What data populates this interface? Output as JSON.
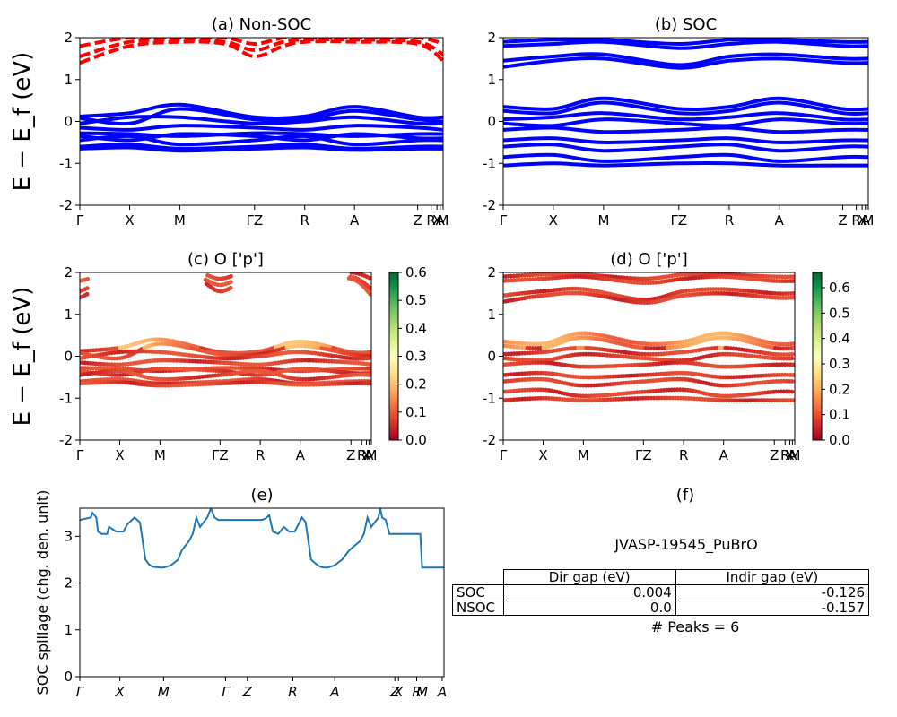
{
  "chart_data": [
    {
      "id": "a",
      "type": "line",
      "title": "(a) Non-SOC",
      "ylabel": "E − E_f (eV)",
      "ylim": [
        -2,
        2
      ],
      "yticks": [
        -2,
        -1,
        0,
        1,
        2
      ],
      "kpath_labels": [
        "Γ",
        "X",
        "M",
        "ΓZ",
        "R",
        "A",
        "Z",
        "R",
        "X",
        "A",
        "M"
      ],
      "kpath_pos": [
        0,
        0.137,
        0.275,
        0.481,
        0.619,
        0.756,
        0.93,
        0.967,
        0.983,
        0.992,
        1.0
      ],
      "grid": false,
      "series": [
        {
          "color": "#0000ff",
          "style": "solid",
          "bands": [
            {
              "x": [
                0,
                0.137,
                0.275,
                0.481,
                0.619,
                0.756,
                0.93,
                1.0
              ],
              "y": [
                0.12,
                0.2,
                0.4,
                0.1,
                0.12,
                0.35,
                0.1,
                0.1
              ]
            },
            {
              "x": [
                0,
                0.137,
                0.275,
                0.481,
                0.619,
                0.756,
                0.93,
                1.0
              ],
              "y": [
                0.08,
                -0.05,
                0.3,
                0.05,
                0.05,
                0.25,
                0.05,
                0.0
              ]
            },
            {
              "x": [
                0,
                0.137,
                0.275,
                0.481,
                0.619,
                0.756,
                0.93,
                1.0
              ],
              "y": [
                -0.05,
                0.1,
                0.1,
                -0.05,
                0.0,
                0.1,
                -0.05,
                -0.05
              ]
            },
            {
              "x": [
                0,
                0.137,
                0.275,
                0.481,
                0.619,
                0.756,
                0.93,
                1.0
              ],
              "y": [
                -0.15,
                -0.2,
                -0.1,
                -0.15,
                -0.2,
                -0.1,
                -0.15,
                -0.2
              ]
            },
            {
              "x": [
                0,
                0.137,
                0.275,
                0.481,
                0.619,
                0.756,
                0.93,
                1.0
              ],
              "y": [
                -0.28,
                -0.3,
                -0.35,
                -0.28,
                -0.3,
                -0.35,
                -0.3,
                -0.3
              ]
            },
            {
              "x": [
                0,
                0.137,
                0.275,
                0.481,
                0.619,
                0.756,
                0.93,
                1.0
              ],
              "y": [
                -0.35,
                -0.45,
                -0.3,
                -0.35,
                -0.45,
                -0.3,
                -0.4,
                -0.4
              ]
            },
            {
              "x": [
                0,
                0.137,
                0.275,
                0.481,
                0.619,
                0.756,
                0.93,
                1.0
              ],
              "y": [
                -0.45,
                -0.35,
                -0.55,
                -0.45,
                -0.35,
                -0.55,
                -0.45,
                -0.45
              ]
            },
            {
              "x": [
                0,
                0.137,
                0.275,
                0.481,
                0.619,
                0.756,
                0.93,
                1.0
              ],
              "y": [
                -0.6,
                -0.55,
                -0.65,
                -0.6,
                -0.55,
                -0.65,
                -0.6,
                -0.6
              ]
            },
            {
              "x": [
                0,
                0.137,
                0.275,
                0.481,
                0.619,
                0.756,
                0.93,
                1.0
              ],
              "y": [
                -0.65,
                -0.62,
                -0.7,
                -0.65,
                -0.62,
                -0.68,
                -0.65,
                -0.65
              ]
            }
          ]
        },
        {
          "color": "#ff0000",
          "style": "dashed",
          "bands": [
            {
              "x": [
                0,
                0.137,
                0.275,
                0.4,
                0.481,
                0.56,
                0.619,
                0.756,
                0.93,
                1.0
              ],
              "y": [
                1.4,
                1.8,
                1.9,
                1.85,
                1.55,
                1.8,
                1.9,
                1.9,
                1.85,
                1.45
              ]
            },
            {
              "x": [
                0,
                0.137,
                0.275,
                0.4,
                0.481,
                0.56,
                0.619,
                0.756,
                0.93,
                1.0
              ],
              "y": [
                1.55,
                1.9,
                1.95,
                1.9,
                1.7,
                1.9,
                1.95,
                1.95,
                1.9,
                1.6
              ]
            },
            {
              "x": [
                0,
                0.137,
                0.275,
                0.4,
                0.481,
                0.56,
                0.619,
                0.756,
                0.93,
                1.0
              ],
              "y": [
                1.8,
                2.0,
                2.0,
                2.0,
                1.85,
                2.0,
                2.0,
                2.0,
                2.0,
                1.85
              ]
            }
          ]
        }
      ]
    },
    {
      "id": "b",
      "type": "line",
      "title": "(b) SOC",
      "ylim": [
        -2,
        2
      ],
      "yticks": [
        -2,
        -1,
        0,
        1,
        2
      ],
      "kpath_labels": [
        "Γ",
        "X",
        "M",
        "ΓZ",
        "R",
        "A",
        "Z",
        "R",
        "X",
        "A",
        "M"
      ],
      "kpath_pos": [
        0,
        0.137,
        0.275,
        0.481,
        0.619,
        0.756,
        0.93,
        0.967,
        0.983,
        0.992,
        1.0
      ],
      "grid": false,
      "series": [
        {
          "color": "#0000ff",
          "style": "solid",
          "bands": [
            {
              "x": [
                0,
                0.137,
                0.275,
                0.481,
                0.619,
                0.756,
                0.93,
                1.0
              ],
              "y": [
                1.9,
                1.95,
                1.95,
                1.85,
                1.95,
                1.95,
                1.9,
                1.9
              ]
            },
            {
              "x": [
                0,
                0.137,
                0.275,
                0.481,
                0.619,
                0.756,
                0.93,
                1.0
              ],
              "y": [
                1.8,
                1.85,
                1.9,
                1.75,
                1.85,
                1.9,
                1.8,
                1.8
              ]
            },
            {
              "x": [
                0,
                0.137,
                0.275,
                0.481,
                0.619,
                0.756,
                0.93,
                1.0
              ],
              "y": [
                1.45,
                1.55,
                1.6,
                1.35,
                1.55,
                1.6,
                1.5,
                1.5
              ]
            },
            {
              "x": [
                0,
                0.137,
                0.275,
                0.481,
                0.619,
                0.756,
                0.93,
                1.0
              ],
              "y": [
                1.3,
                1.45,
                1.5,
                1.28,
                1.45,
                1.5,
                1.4,
                1.4
              ]
            },
            {
              "x": [
                0,
                0.137,
                0.275,
                0.481,
                0.619,
                0.756,
                0.93,
                1.0
              ],
              "y": [
                0.35,
                0.3,
                0.55,
                0.3,
                0.35,
                0.55,
                0.3,
                0.3
              ]
            },
            {
              "x": [
                0,
                0.137,
                0.275,
                0.481,
                0.619,
                0.756,
                0.93,
                1.0
              ],
              "y": [
                0.25,
                0.2,
                0.45,
                0.2,
                0.25,
                0.45,
                0.2,
                0.2
              ]
            },
            {
              "x": [
                0,
                0.137,
                0.275,
                0.481,
                0.619,
                0.756,
                0.93,
                1.0
              ],
              "y": [
                0.05,
                0.1,
                0.2,
                0.05,
                0.1,
                0.2,
                0.05,
                0.05
              ]
            },
            {
              "x": [
                0,
                0.137,
                0.275,
                0.481,
                0.619,
                0.756,
                0.93,
                1.0
              ],
              "y": [
                -0.05,
                -0.1,
                0.05,
                -0.05,
                -0.1,
                0.05,
                -0.05,
                -0.05
              ]
            },
            {
              "x": [
                0,
                0.137,
                0.275,
                0.481,
                0.619,
                0.756,
                0.93,
                1.0
              ],
              "y": [
                -0.2,
                -0.15,
                -0.25,
                -0.2,
                -0.15,
                -0.25,
                -0.2,
                -0.2
              ]
            },
            {
              "x": [
                0,
                0.137,
                0.275,
                0.481,
                0.619,
                0.756,
                0.93,
                1.0
              ],
              "y": [
                -0.45,
                -0.4,
                -0.5,
                -0.45,
                -0.4,
                -0.5,
                -0.45,
                -0.45
              ]
            },
            {
              "x": [
                0,
                0.137,
                0.275,
                0.481,
                0.619,
                0.756,
                0.93,
                1.0
              ],
              "y": [
                -0.6,
                -0.55,
                -0.7,
                -0.6,
                -0.55,
                -0.7,
                -0.6,
                -0.6
              ]
            },
            {
              "x": [
                0,
                0.137,
                0.275,
                0.481,
                0.619,
                0.756,
                0.93,
                1.0
              ],
              "y": [
                -0.85,
                -0.8,
                -0.95,
                -0.85,
                -0.8,
                -0.95,
                -0.85,
                -0.85
              ]
            },
            {
              "x": [
                0,
                0.137,
                0.275,
                0.481,
                0.619,
                0.756,
                0.93,
                1.0
              ],
              "y": [
                -1.05,
                -1.0,
                -1.05,
                -1.0,
                -1.0,
                -1.05,
                -1.05,
                -1.05
              ]
            }
          ]
        }
      ]
    },
    {
      "id": "c",
      "type": "scatter",
      "title": "(c)  O ['p']",
      "ylabel": "E − E_f (eV)",
      "ylim": [
        -2,
        2
      ],
      "yticks": [
        -2,
        -1,
        0,
        1,
        2
      ],
      "kpath_labels": [
        "Γ",
        "X",
        "M",
        "ΓZ",
        "R",
        "A",
        "Z",
        "R",
        "X",
        "A",
        "M"
      ],
      "kpath_pos": [
        0,
        0.137,
        0.275,
        0.481,
        0.619,
        0.756,
        0.93,
        0.967,
        0.983,
        0.992,
        1.0
      ],
      "colorbar": {
        "colormap": "RdYlGn",
        "range": [
          0,
          0.6
        ],
        "ticks": [
          "0.0",
          "0.1",
          "0.2",
          "0.3",
          "0.4",
          "0.5",
          "0.6"
        ]
      },
      "grid": false
    },
    {
      "id": "d",
      "type": "scatter",
      "title": "(d) O ['p']",
      "ylim": [
        -2,
        2
      ],
      "yticks": [
        -2,
        -1,
        0,
        1,
        2
      ],
      "kpath_labels": [
        "Γ",
        "X",
        "M",
        "ΓZ",
        "R",
        "A",
        "Z",
        "R",
        "X",
        "A",
        "M"
      ],
      "kpath_pos": [
        0,
        0.137,
        0.275,
        0.481,
        0.619,
        0.756,
        0.93,
        0.967,
        0.983,
        0.992,
        1.0
      ],
      "colorbar": {
        "colormap": "RdYlGn",
        "range": [
          0,
          0.66
        ],
        "ticks": [
          "0.0",
          "0.1",
          "0.2",
          "0.3",
          "0.4",
          "0.5",
          "0.6"
        ]
      },
      "grid": false
    },
    {
      "id": "e",
      "type": "line",
      "title": "(e)",
      "ylabel": "SOC spillage (chg. den. unit)",
      "ylim": [
        0,
        3.6
      ],
      "yticks": [
        0,
        1,
        2,
        3
      ],
      "kpath_labels": [
        "Γ",
        "X",
        "M",
        "Γ",
        "Z",
        "R",
        "A",
        "Z",
        "X",
        "R",
        "M",
        "A"
      ],
      "kpath_pos": [
        0,
        0.11,
        0.23,
        0.4,
        0.46,
        0.585,
        0.7,
        0.865,
        0.875,
        0.925,
        0.94,
        0.995
      ],
      "grid": false,
      "series": [
        {
          "color": "#1f77b4",
          "x": [
            0,
            0.03,
            0.035,
            0.045,
            0.05,
            0.06,
            0.075,
            0.08,
            0.1,
            0.12,
            0.13,
            0.15,
            0.165,
            0.18,
            0.19,
            0.2,
            0.22,
            0.23,
            0.25,
            0.27,
            0.28,
            0.29,
            0.3,
            0.31,
            0.32,
            0.33,
            0.34,
            0.35,
            0.36,
            0.37,
            0.38,
            0.39,
            0.4,
            0.41,
            0.42,
            0.43,
            0.44,
            0.45,
            0.46,
            0.47,
            0.48,
            0.49,
            0.5,
            0.51,
            0.52,
            0.53,
            0.545,
            0.56,
            0.575,
            0.59,
            0.6,
            0.61,
            0.62,
            0.635,
            0.65,
            0.66,
            0.67,
            0.68,
            0.7,
            0.72,
            0.74,
            0.755,
            0.77,
            0.78,
            0.79,
            0.8,
            0.81,
            0.82,
            0.825,
            0.83,
            0.84,
            0.85,
            0.86,
            0.865,
            0.87,
            0.88,
            0.9,
            0.92,
            0.935,
            0.94,
            0.95,
            0.97,
            1.0
          ],
          "y": [
            3.35,
            3.4,
            3.5,
            3.4,
            3.1,
            3.05,
            3.05,
            3.2,
            3.1,
            3.1,
            3.25,
            3.4,
            3.3,
            2.5,
            2.4,
            2.35,
            2.33,
            2.33,
            2.38,
            2.5,
            2.7,
            2.8,
            2.9,
            3.05,
            3.4,
            3.2,
            3.3,
            3.4,
            3.6,
            3.4,
            3.35,
            3.35,
            3.35,
            3.35,
            3.35,
            3.35,
            3.35,
            3.35,
            3.35,
            3.35,
            3.35,
            3.35,
            3.35,
            3.38,
            3.45,
            3.1,
            3.05,
            3.2,
            3.1,
            3.1,
            3.25,
            3.4,
            3.3,
            2.5,
            2.4,
            2.35,
            2.33,
            2.33,
            2.38,
            2.5,
            2.7,
            2.8,
            2.9,
            3.05,
            3.4,
            3.2,
            3.3,
            3.4,
            3.6,
            3.4,
            3.35,
            3.05,
            3.05,
            3.05,
            3.05,
            3.05,
            3.05,
            3.05,
            3.05,
            2.33,
            2.33,
            2.33,
            2.33
          ]
        }
      ]
    }
  ],
  "panel_f": {
    "title": "(f)",
    "table_title": "JVASP-19545_PuBrO",
    "col_headers": [
      "Dir gap (eV)",
      "Indir gap (eV)"
    ],
    "rows": [
      {
        "label": "SOC",
        "dir": "0.004",
        "indir": "-0.126"
      },
      {
        "label": "NSOC",
        "dir": "0.0",
        "indir": "-0.157"
      }
    ],
    "peaks": "# Peaks = 6"
  }
}
